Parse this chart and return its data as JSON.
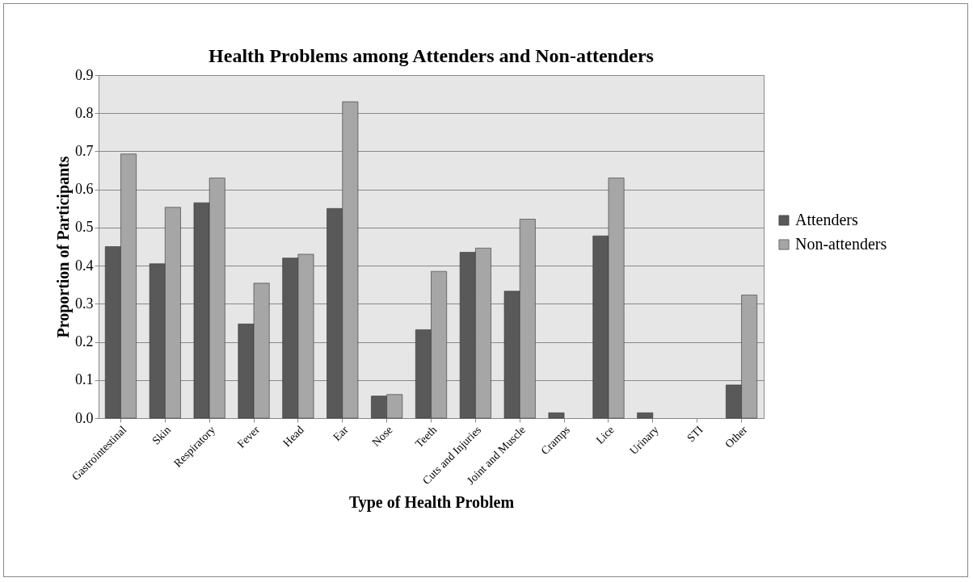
{
  "chart_data": {
    "type": "bar",
    "title": "Health Problems among Attenders and Non-attenders",
    "xlabel": "Type of Health Problem",
    "ylabel": "Proportion of Participants",
    "categories": [
      "Gastrointestinal",
      "Skin",
      "Respiratory",
      "Fever",
      "Head",
      "Ear",
      "Nose",
      "Teeth",
      "Cuts and Injuries",
      "Joint and Muscle",
      "Cramps",
      "Lice",
      "Urinary",
      "STI",
      "Other"
    ],
    "series": [
      {
        "name": "Attenders",
        "color": "#595959",
        "values": [
          0.45,
          0.405,
          0.565,
          0.247,
          0.42,
          0.55,
          0.058,
          0.232,
          0.435,
          0.333,
          0.014,
          0.478,
          0.014,
          0,
          0.087
        ]
      },
      {
        "name": "Non-attenders",
        "color": "#a6a6a6",
        "values": [
          0.693,
          0.553,
          0.63,
          0.354,
          0.43,
          0.83,
          0.062,
          0.385,
          0.446,
          0.522,
          0,
          0.63,
          0,
          0,
          0.323
        ]
      }
    ],
    "ylim": [
      0,
      0.9
    ],
    "yticks": [
      {
        "value": 0,
        "label": "0.0"
      },
      0.1,
      0.2,
      0.3,
      0.4,
      0.5,
      0.6,
      0.7,
      0.8,
      0.9
    ],
    "grid": "y",
    "legend": "right"
  }
}
